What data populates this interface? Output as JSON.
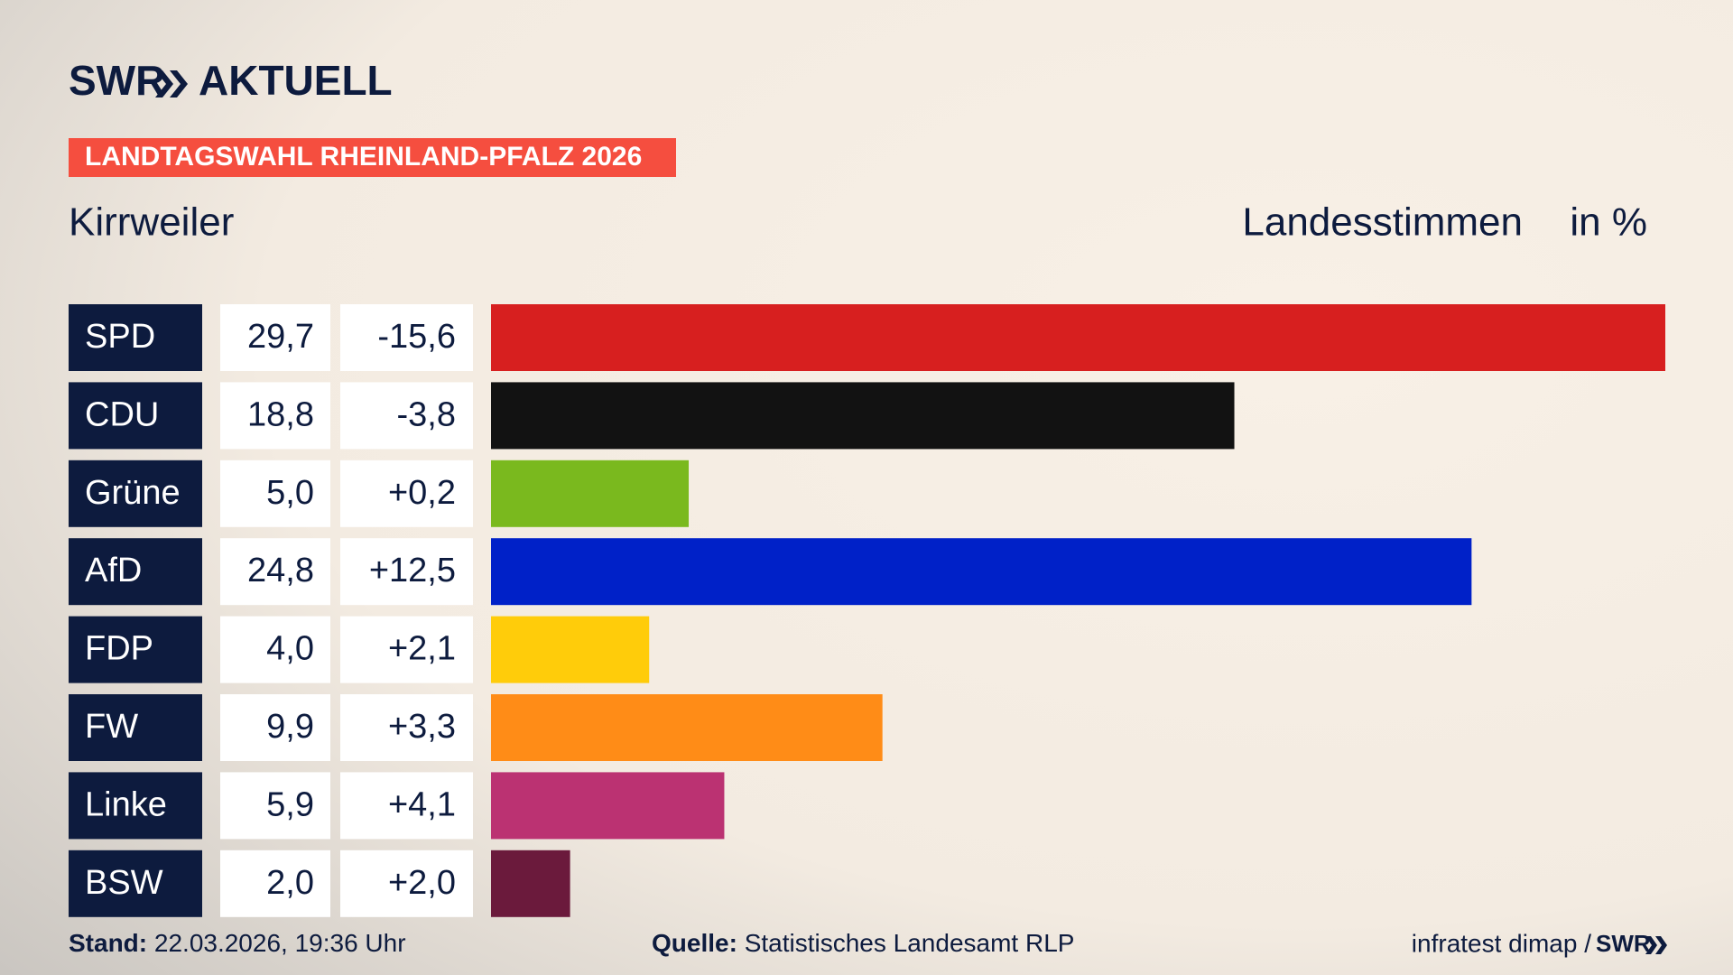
{
  "header": {
    "brand": "SWR",
    "brand_suffix": "AKTUELL",
    "tag": "LANDTAGSWAHL RHEINLAND-PFALZ 2026",
    "location": "Kirrweiler",
    "measure": "Landesstimmen",
    "unit": "in %"
  },
  "chart_data": {
    "type": "bar",
    "categories": [
      "SPD",
      "CDU",
      "Grüne",
      "AfD",
      "FDP",
      "FW",
      "Linke",
      "BSW"
    ],
    "values": [
      29.7,
      18.8,
      5.0,
      24.8,
      4.0,
      9.9,
      5.9,
      2.0
    ],
    "value_labels": [
      "29,7",
      "18,8",
      "5,0",
      "24,8",
      "4,0",
      "9,9",
      "5,9",
      "2,0"
    ],
    "changes": [
      -15.6,
      -3.8,
      0.2,
      12.5,
      2.1,
      3.3,
      4.1,
      2.0
    ],
    "change_labels": [
      "-15,6",
      "-3,8",
      "+0,2",
      "+12,5",
      "+2,1",
      "+3,3",
      "+4,1",
      "+2,0"
    ],
    "colors": [
      "#d71f1f",
      "#121212",
      "#7ab91e",
      "#0021c8",
      "#ffcc0a",
      "#ff8c17",
      "#bb3272",
      "#6b1a3c"
    ]
  },
  "footer": {
    "stand_label": "Stand:",
    "stand": "22.03.2026, 19:36 Uhr",
    "source_label": "Quelle:",
    "source": "Statistisches Landesamt RLP",
    "credit": "infratest dimap /",
    "credit_brand": "SWR"
  }
}
